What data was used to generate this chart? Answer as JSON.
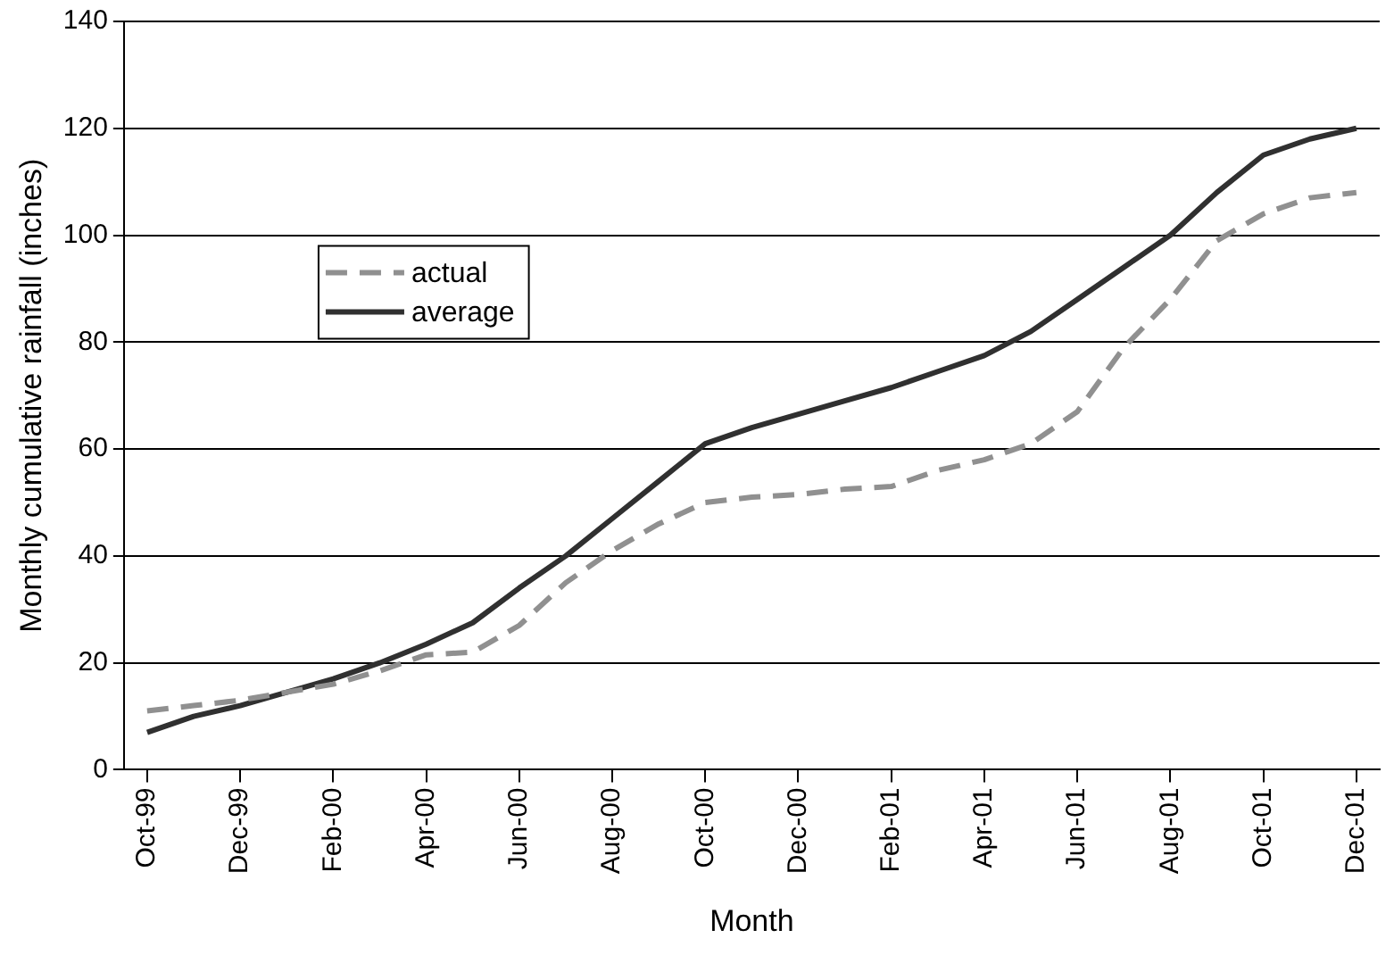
{
  "chart_data": {
    "type": "line",
    "xlabel": "Month",
    "ylabel": "Monthly cumulative rainfall (inches)",
    "categories": [
      "Oct-99",
      null,
      "Dec-99",
      null,
      "Feb-00",
      null,
      "Apr-00",
      null,
      "Jun-00",
      null,
      "Aug-00",
      null,
      "Oct-00",
      null,
      "Dec-00",
      null,
      "Feb-01",
      null,
      "Apr-01",
      null,
      "Jun-01",
      null,
      "Aug-01",
      null,
      "Oct-01",
      null,
      "Dec-01"
    ],
    "series": [
      {
        "name": "actual",
        "color": "#909090",
        "line_style": "dashed",
        "values": [
          11,
          12,
          13,
          14.5,
          16,
          18.5,
          21.5,
          22,
          27,
          35,
          41,
          46,
          50,
          51,
          51.5,
          52.5,
          53,
          56,
          58,
          61,
          67,
          79,
          88,
          99,
          104,
          107,
          108
        ]
      },
      {
        "name": "average",
        "color": "#303030",
        "line_style": "solid",
        "values": [
          7,
          10,
          12,
          14.5,
          17,
          20,
          23.5,
          27.5,
          34,
          40,
          47,
          54,
          61,
          64,
          66.5,
          69,
          71.5,
          74.5,
          77.5,
          82,
          88,
          94,
          100,
          108,
          115,
          118,
          120
        ]
      }
    ],
    "ylim": [
      0,
      140
    ],
    "yticks": [
      0,
      20,
      40,
      60,
      80,
      100,
      120,
      140
    ],
    "grid": "y",
    "legend": "top left",
    "marker": "none"
  }
}
